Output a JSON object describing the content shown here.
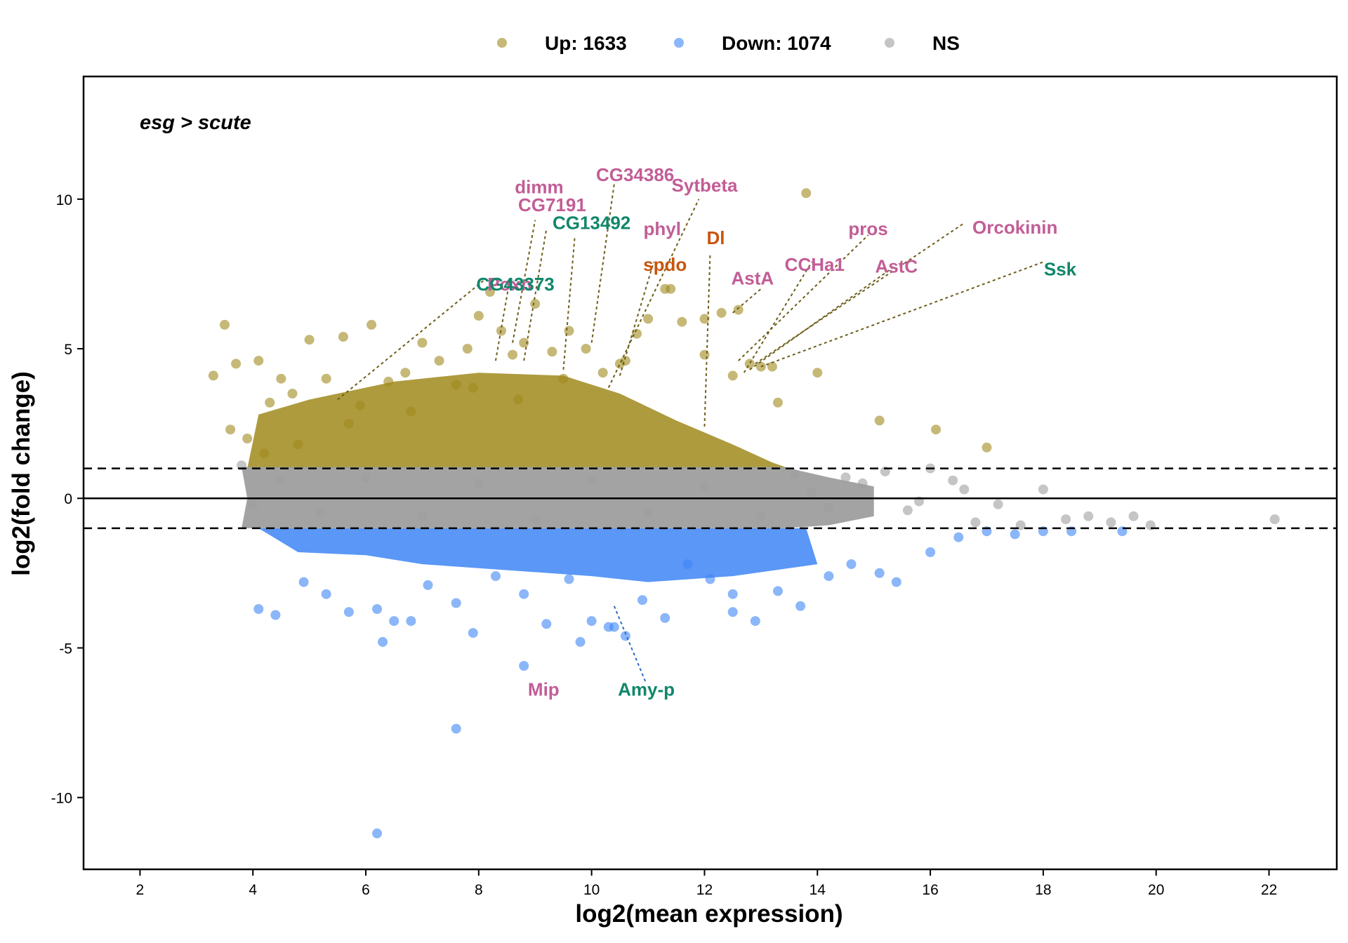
{
  "chart_data": {
    "type": "scatter",
    "xlabel": "log2(mean expression)",
    "ylabel": "log2(fold change)",
    "xlim": [
      1,
      23.2
    ],
    "ylim": [
      -12.4,
      14.1
    ],
    "xticks": [
      2,
      4,
      6,
      8,
      10,
      12,
      14,
      16,
      18,
      20,
      22
    ],
    "yticks": [
      -10,
      -5,
      0,
      5,
      10
    ],
    "hlines": [
      -1,
      0,
      1
    ],
    "annotation": "esg > scute",
    "legend_position": "top",
    "legend": [
      {
        "label": "Up: 1633",
        "color": "#A0891C"
      },
      {
        "label": "Down: 1074",
        "color": "#3D85F5"
      },
      {
        "label": "NS",
        "color": "#9E9E9E"
      }
    ],
    "series": [
      {
        "name": "Up: 1633",
        "color": "#A0891C",
        "x": [
          3.3,
          3.5,
          3.6,
          3.7,
          3.9,
          4.1,
          4.3,
          4.5,
          4.7,
          5.0,
          5.3,
          5.6,
          5.9,
          6.1,
          6.4,
          6.7,
          7.0,
          7.3,
          7.6,
          7.8,
          8.0,
          8.2,
          8.4,
          8.6,
          8.8,
          9.0,
          9.3,
          9.6,
          9.9,
          10.2,
          10.5,
          10.8,
          11.0,
          11.3,
          11.6,
          12.0,
          12.3,
          12.6,
          13.0,
          13.3,
          13.8,
          14.0,
          15.1,
          16.1,
          17.0,
          12.0,
          12.5,
          12.8,
          13.2,
          11.4,
          10.6,
          9.5,
          8.7,
          7.9,
          6.8,
          5.7,
          4.8,
          4.2
        ],
        "y": [
          4.1,
          5.8,
          2.3,
          4.5,
          2.0,
          4.6,
          3.2,
          4.0,
          3.5,
          5.3,
          4.0,
          5.4,
          3.1,
          5.8,
          3.9,
          4.2,
          5.2,
          4.6,
          3.8,
          5.0,
          6.1,
          6.9,
          5.6,
          4.8,
          5.2,
          6.5,
          4.9,
          5.6,
          5.0,
          4.2,
          4.5,
          5.5,
          6.0,
          7.0,
          5.9,
          6.0,
          6.2,
          6.3,
          4.4,
          3.2,
          10.2,
          4.2,
          2.6,
          2.3,
          1.7,
          4.8,
          4.1,
          4.5,
          4.4,
          7.0,
          4.6,
          4.0,
          3.3,
          3.7,
          2.9,
          2.5,
          1.8,
          1.5
        ]
      },
      {
        "name": "Down: 1074",
        "color": "#3D85F5",
        "x": [
          4.1,
          4.4,
          4.9,
          5.3,
          5.7,
          6.2,
          6.5,
          6.8,
          7.1,
          7.6,
          7.9,
          8.3,
          8.8,
          9.2,
          9.6,
          10.0,
          10.4,
          10.6,
          10.9,
          11.3,
          11.7,
          12.1,
          12.5,
          12.9,
          13.3,
          13.7,
          14.2,
          14.6,
          15.1,
          15.4,
          16.0,
          16.5,
          17.0,
          17.5,
          18.0,
          18.5,
          19.4,
          7.6,
          6.2,
          10.3,
          8.8,
          12.5,
          9.8,
          6.3
        ],
        "y": [
          -3.7,
          -3.9,
          -2.8,
          -3.2,
          -3.8,
          -3.7,
          -4.1,
          -4.1,
          -2.9,
          -3.5,
          -4.5,
          -2.6,
          -3.2,
          -4.2,
          -2.7,
          -4.1,
          -4.3,
          -4.6,
          -3.4,
          -4.0,
          -2.2,
          -2.7,
          -3.8,
          -4.1,
          -3.1,
          -3.6,
          -2.6,
          -2.2,
          -2.5,
          -2.8,
          -1.8,
          -1.3,
          -1.1,
          -1.2,
          -1.1,
          -1.1,
          -1.1,
          -7.7,
          -11.2,
          -4.3,
          -5.6,
          -3.2,
          -4.8,
          -4.8
        ]
      },
      {
        "name": "NS",
        "color": "#9E9E9E",
        "x": [
          3.8,
          4.0,
          4.5,
          5.2,
          6.0,
          7.0,
          8.0,
          9.0,
          10.0,
          11.0,
          12.0,
          13.0,
          13.6,
          14.2,
          14.8,
          15.2,
          15.6,
          16.0,
          16.4,
          16.8,
          17.2,
          17.6,
          18.0,
          18.4,
          18.8,
          19.2,
          19.6,
          19.9,
          22.1,
          16.6,
          15.8,
          14.5,
          13.9
        ],
        "y": [
          1.1,
          -0.2,
          0.6,
          -0.5,
          0.7,
          -0.6,
          0.5,
          -0.7,
          0.6,
          -0.5,
          0.4,
          -0.6,
          0.8,
          -0.3,
          0.5,
          0.9,
          -0.4,
          1.0,
          0.6,
          -0.8,
          -0.2,
          -0.9,
          0.3,
          -0.7,
          -0.6,
          -0.8,
          -0.6,
          -0.9,
          -0.7,
          0.3,
          -0.1,
          0.7,
          0.2
        ]
      }
    ],
    "labels": [
      {
        "text": "dimm",
        "x": 9.07,
        "y": 10.2,
        "color": "#C25D96"
      },
      {
        "text": "CG34386",
        "x": 10.77,
        "y": 10.6,
        "color": "#C25D96"
      },
      {
        "text": "Sytbeta",
        "x": 12.0,
        "y": 10.25,
        "color": "#C25D96"
      },
      {
        "text": "CG7191",
        "x": 9.3,
        "y": 9.6,
        "color": "#C25D96"
      },
      {
        "text": "CG13492",
        "x": 10.0,
        "y": 9.0,
        "color": "#10876A"
      },
      {
        "text": "phyl",
        "x": 11.25,
        "y": 8.8,
        "color": "#C25D96"
      },
      {
        "text": "Dl",
        "x": 12.2,
        "y": 8.5,
        "color": "#C8550E"
      },
      {
        "text": "pros",
        "x": 14.9,
        "y": 8.8,
        "color": "#C25D96"
      },
      {
        "text": "Orcokinin",
        "x": 17.5,
        "y": 8.85,
        "color": "#C25D96"
      },
      {
        "text": "spdo",
        "x": 11.3,
        "y": 7.6,
        "color": "#C8550E"
      },
      {
        "text": "CCHa1",
        "x": 13.95,
        "y": 7.6,
        "color": "#C25D96"
      },
      {
        "text": "AstC",
        "x": 15.4,
        "y": 7.55,
        "color": "#C25D96"
      },
      {
        "text": "Ssk",
        "x": 18.3,
        "y": 7.45,
        "color": "#10876A"
      },
      {
        "text": "AstA",
        "x": 12.85,
        "y": 7.15,
        "color": "#C25D96"
      },
      {
        "text": "Poxn",
        "x": 8.55,
        "y": 6.95,
        "color": "#C25D96"
      },
      {
        "text": "CG43373",
        "x": 8.65,
        "y": 6.95,
        "color": "#10876A"
      },
      {
        "text": "Mip",
        "x": 9.15,
        "y": -6.6,
        "color": "#C25D96"
      },
      {
        "text": "Amy-p",
        "x": 10.97,
        "y": -6.6,
        "color": "#10876A"
      }
    ],
    "connectors": [
      {
        "from": [
          5.5,
          3.3
        ],
        "to": [
          8.1,
          7.3
        ],
        "color": "#6E5E1A"
      },
      {
        "from": [
          8.3,
          4.6
        ],
        "to": [
          8.55,
          7.3
        ],
        "color": "#6E5E1A"
      },
      {
        "from": [
          8.6,
          5.2
        ],
        "to": [
          9.0,
          9.3
        ],
        "color": "#6E5E1A"
      },
      {
        "from": [
          8.8,
          4.6
        ],
        "to": [
          9.2,
          9.0
        ],
        "color": "#6E5E1A"
      },
      {
        "from": [
          9.5,
          4.3
        ],
        "to": [
          9.7,
          8.7
        ],
        "color": "#6E5E1A"
      },
      {
        "from": [
          10.0,
          5.2
        ],
        "to": [
          10.4,
          10.5
        ],
        "color": "#6E5E1A"
      },
      {
        "from": [
          10.5,
          4.1
        ],
        "to": [
          11.1,
          7.9
        ],
        "color": "#6E5E1A"
      },
      {
        "from": [
          10.3,
          3.7
        ],
        "to": [
          11.9,
          10.0
        ],
        "color": "#6E5E1A"
      },
      {
        "from": [
          12.0,
          2.4
        ],
        "to": [
          12.1,
          8.2
        ],
        "color": "#6E5E1A"
      },
      {
        "from": [
          12.5,
          6.2
        ],
        "to": [
          13.0,
          7.0
        ],
        "color": "#6E5E1A"
      },
      {
        "from": [
          12.7,
          4.2
        ],
        "to": [
          13.9,
          7.9
        ],
        "color": "#6E5E1A"
      },
      {
        "from": [
          12.6,
          4.6
        ],
        "to": [
          14.9,
          8.8
        ],
        "color": "#6E5E1A"
      },
      {
        "from": [
          12.8,
          4.3
        ],
        "to": [
          15.4,
          7.8
        ],
        "color": "#6E5E1A"
      },
      {
        "from": [
          12.9,
          4.5
        ],
        "to": [
          16.6,
          9.2
        ],
        "color": "#6E5E1A"
      },
      {
        "from": [
          13.0,
          4.4
        ],
        "to": [
          18.0,
          7.9
        ],
        "color": "#6E5E1A"
      },
      {
        "from": [
          10.4,
          -3.6
        ],
        "to": [
          10.97,
          -6.2
        ],
        "color": "#2B6CC4"
      }
    ]
  }
}
